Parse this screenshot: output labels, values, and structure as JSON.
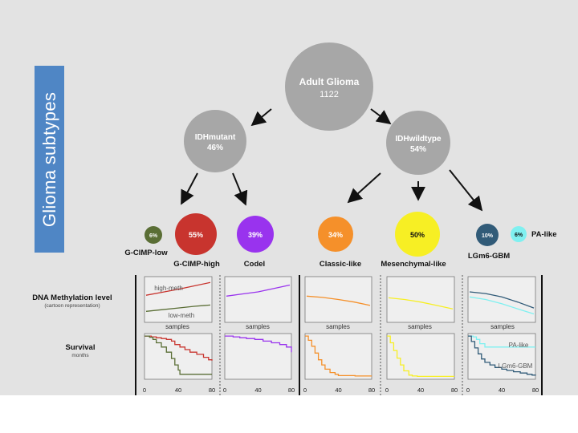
{
  "title": "Glioma subtypes",
  "root": {
    "name": "Adult Glioma",
    "count": "1122"
  },
  "branches": [
    {
      "name": "IDHmutant",
      "pct": "46%"
    },
    {
      "name": "IDHwildtype",
      "pct": "54%"
    }
  ],
  "subtypes": [
    {
      "key": "gcimp-low",
      "label": "G-CIMP-low",
      "pct": "6%",
      "color": "#5a6e35"
    },
    {
      "key": "gcimp-high",
      "label": "G-CIMP-high",
      "pct": "55%",
      "color": "#c8342e"
    },
    {
      "key": "codel",
      "label": "Codel",
      "pct": "39%",
      "color": "#9933ee"
    },
    {
      "key": "classic-like",
      "label": "Classic-like",
      "pct": "34%",
      "color": "#f5902a"
    },
    {
      "key": "mesenchymal-like",
      "label": "Mesenchymal-like",
      "pct": "50%",
      "color": "#f7ef24"
    },
    {
      "key": "lgm6-gbm",
      "label": "LGm6-GBM",
      "pct": "10%",
      "color": "#315b78"
    },
    {
      "key": "pa-like",
      "label": "PA-like",
      "pct": "6%",
      "color": "#7ff0f0"
    }
  ],
  "rows": {
    "methylation": {
      "label": "DNA Methylation level",
      "sublabel": "(cartoon representation)"
    },
    "survival": {
      "label": "Survival",
      "sublabel": "months"
    }
  },
  "panel_text": {
    "samples": "samples",
    "high_meth": "high-meth",
    "low_meth": "low-meth",
    "pa_like": "PA-like",
    "lgm6_gbm": "LGm6-GBM",
    "x_ticks": [
      "0",
      "40",
      "80"
    ]
  },
  "chart_data": [
    {
      "type": "line",
      "title": "DNA Methylation level",
      "xlabel": "samples",
      "ylabel": "",
      "panels": [
        {
          "group": "G-CIMP",
          "series": [
            {
              "name": "high-meth",
              "color": "#c8342e",
              "values": [
                0.6,
                0.67,
                0.74,
                0.82,
                0.9
              ]
            },
            {
              "name": "low-meth",
              "color": "#5a6e35",
              "values": [
                0.22,
                0.26,
                0.3,
                0.34,
                0.37
              ]
            }
          ]
        },
        {
          "group": "Codel",
          "series": [
            {
              "color": "#9933ee",
              "values": [
                0.58,
                0.63,
                0.68,
                0.76,
                0.84
              ]
            }
          ]
        },
        {
          "group": "Classic-like",
          "series": [
            {
              "color": "#f5902a",
              "values": [
                0.58,
                0.55,
                0.5,
                0.44,
                0.36
              ]
            }
          ]
        },
        {
          "group": "Mesenchymal-like",
          "series": [
            {
              "color": "#f7ef24",
              "values": [
                0.54,
                0.5,
                0.44,
                0.36,
                0.28
              ]
            }
          ]
        },
        {
          "group": "LGm6-GBM / PA-like",
          "series": [
            {
              "name": "LGm6-GBM",
              "color": "#315b78",
              "values": [
                0.68,
                0.64,
                0.56,
                0.44,
                0.3
              ]
            },
            {
              "name": "PA-like",
              "color": "#7ff0f0",
              "values": [
                0.56,
                0.5,
                0.4,
                0.28,
                0.16
              ]
            }
          ]
        }
      ]
    },
    {
      "type": "line",
      "title": "Survival",
      "xlabel": "months",
      "ylabel": "",
      "xlim": [
        0,
        80
      ],
      "xticks": [
        0,
        40,
        80
      ],
      "panels": [
        {
          "group": "G-CIMP",
          "series": [
            {
              "name": "G-CIMP-high",
              "color": "#c8342e",
              "x": [
                0,
                8,
                14,
                20,
                26,
                32,
                36,
                42,
                48,
                54,
                62,
                70,
                76,
                80
              ],
              "y": [
                0.98,
                0.96,
                0.94,
                0.92,
                0.9,
                0.86,
                0.78,
                0.72,
                0.66,
                0.6,
                0.55,
                0.48,
                0.42,
                0.4
              ]
            },
            {
              "name": "G-CIMP-low",
              "color": "#5a6e35",
              "x": [
                0,
                6,
                10,
                14,
                20,
                26,
                32,
                36,
                40,
                42,
                80
              ],
              "y": [
                0.98,
                0.95,
                0.9,
                0.82,
                0.72,
                0.6,
                0.45,
                0.3,
                0.18,
                0.08,
                0.08
              ]
            }
          ]
        },
        {
          "group": "Codel",
          "series": [
            {
              "name": "Codel",
              "color": "#9933ee",
              "x": [
                0,
                10,
                18,
                26,
                36,
                46,
                56,
                66,
                74,
                80
              ],
              "y": [
                0.98,
                0.96,
                0.94,
                0.92,
                0.9,
                0.86,
                0.82,
                0.78,
                0.72,
                0.6
              ]
            }
          ]
        },
        {
          "group": "Classic-like",
          "series": [
            {
              "name": "Classic-like",
              "color": "#f5902a",
              "x": [
                0,
                4,
                8,
                12,
                16,
                20,
                24,
                30,
                36,
                40,
                50,
                60,
                70,
                80
              ],
              "y": [
                0.98,
                0.88,
                0.74,
                0.58,
                0.42,
                0.3,
                0.2,
                0.12,
                0.08,
                0.05,
                0.05,
                0.04,
                0.04,
                0.04
              ]
            }
          ]
        },
        {
          "group": "Mesenchymal-like",
          "series": [
            {
              "name": "Mesenchymal-like",
              "color": "#f7ef24",
              "x": [
                0,
                4,
                8,
                12,
                16,
                20,
                26,
                30,
                36,
                50,
                80
              ],
              "y": [
                0.98,
                0.82,
                0.64,
                0.46,
                0.3,
                0.16,
                0.06,
                0.04,
                0.03,
                0.03,
                0.03
              ]
            }
          ]
        },
        {
          "group": "LGm6-GBM / PA-like",
          "series": [
            {
              "name": "PA-like",
              "color": "#7ff0f0",
              "x": [
                0,
                6,
                10,
                14,
                20,
                80
              ],
              "y": [
                0.98,
                0.96,
                0.9,
                0.8,
                0.72,
                0.72
              ]
            },
            {
              "name": "LGm6-GBM",
              "color": "#315b78",
              "x": [
                0,
                4,
                8,
                12,
                16,
                20,
                26,
                32,
                40,
                46,
                54,
                62,
                70,
                76,
                80
              ],
              "y": [
                0.98,
                0.85,
                0.7,
                0.56,
                0.44,
                0.36,
                0.3,
                0.24,
                0.2,
                0.17,
                0.14,
                0.11,
                0.08,
                0.06,
                0.05
              ]
            }
          ]
        }
      ]
    }
  ]
}
